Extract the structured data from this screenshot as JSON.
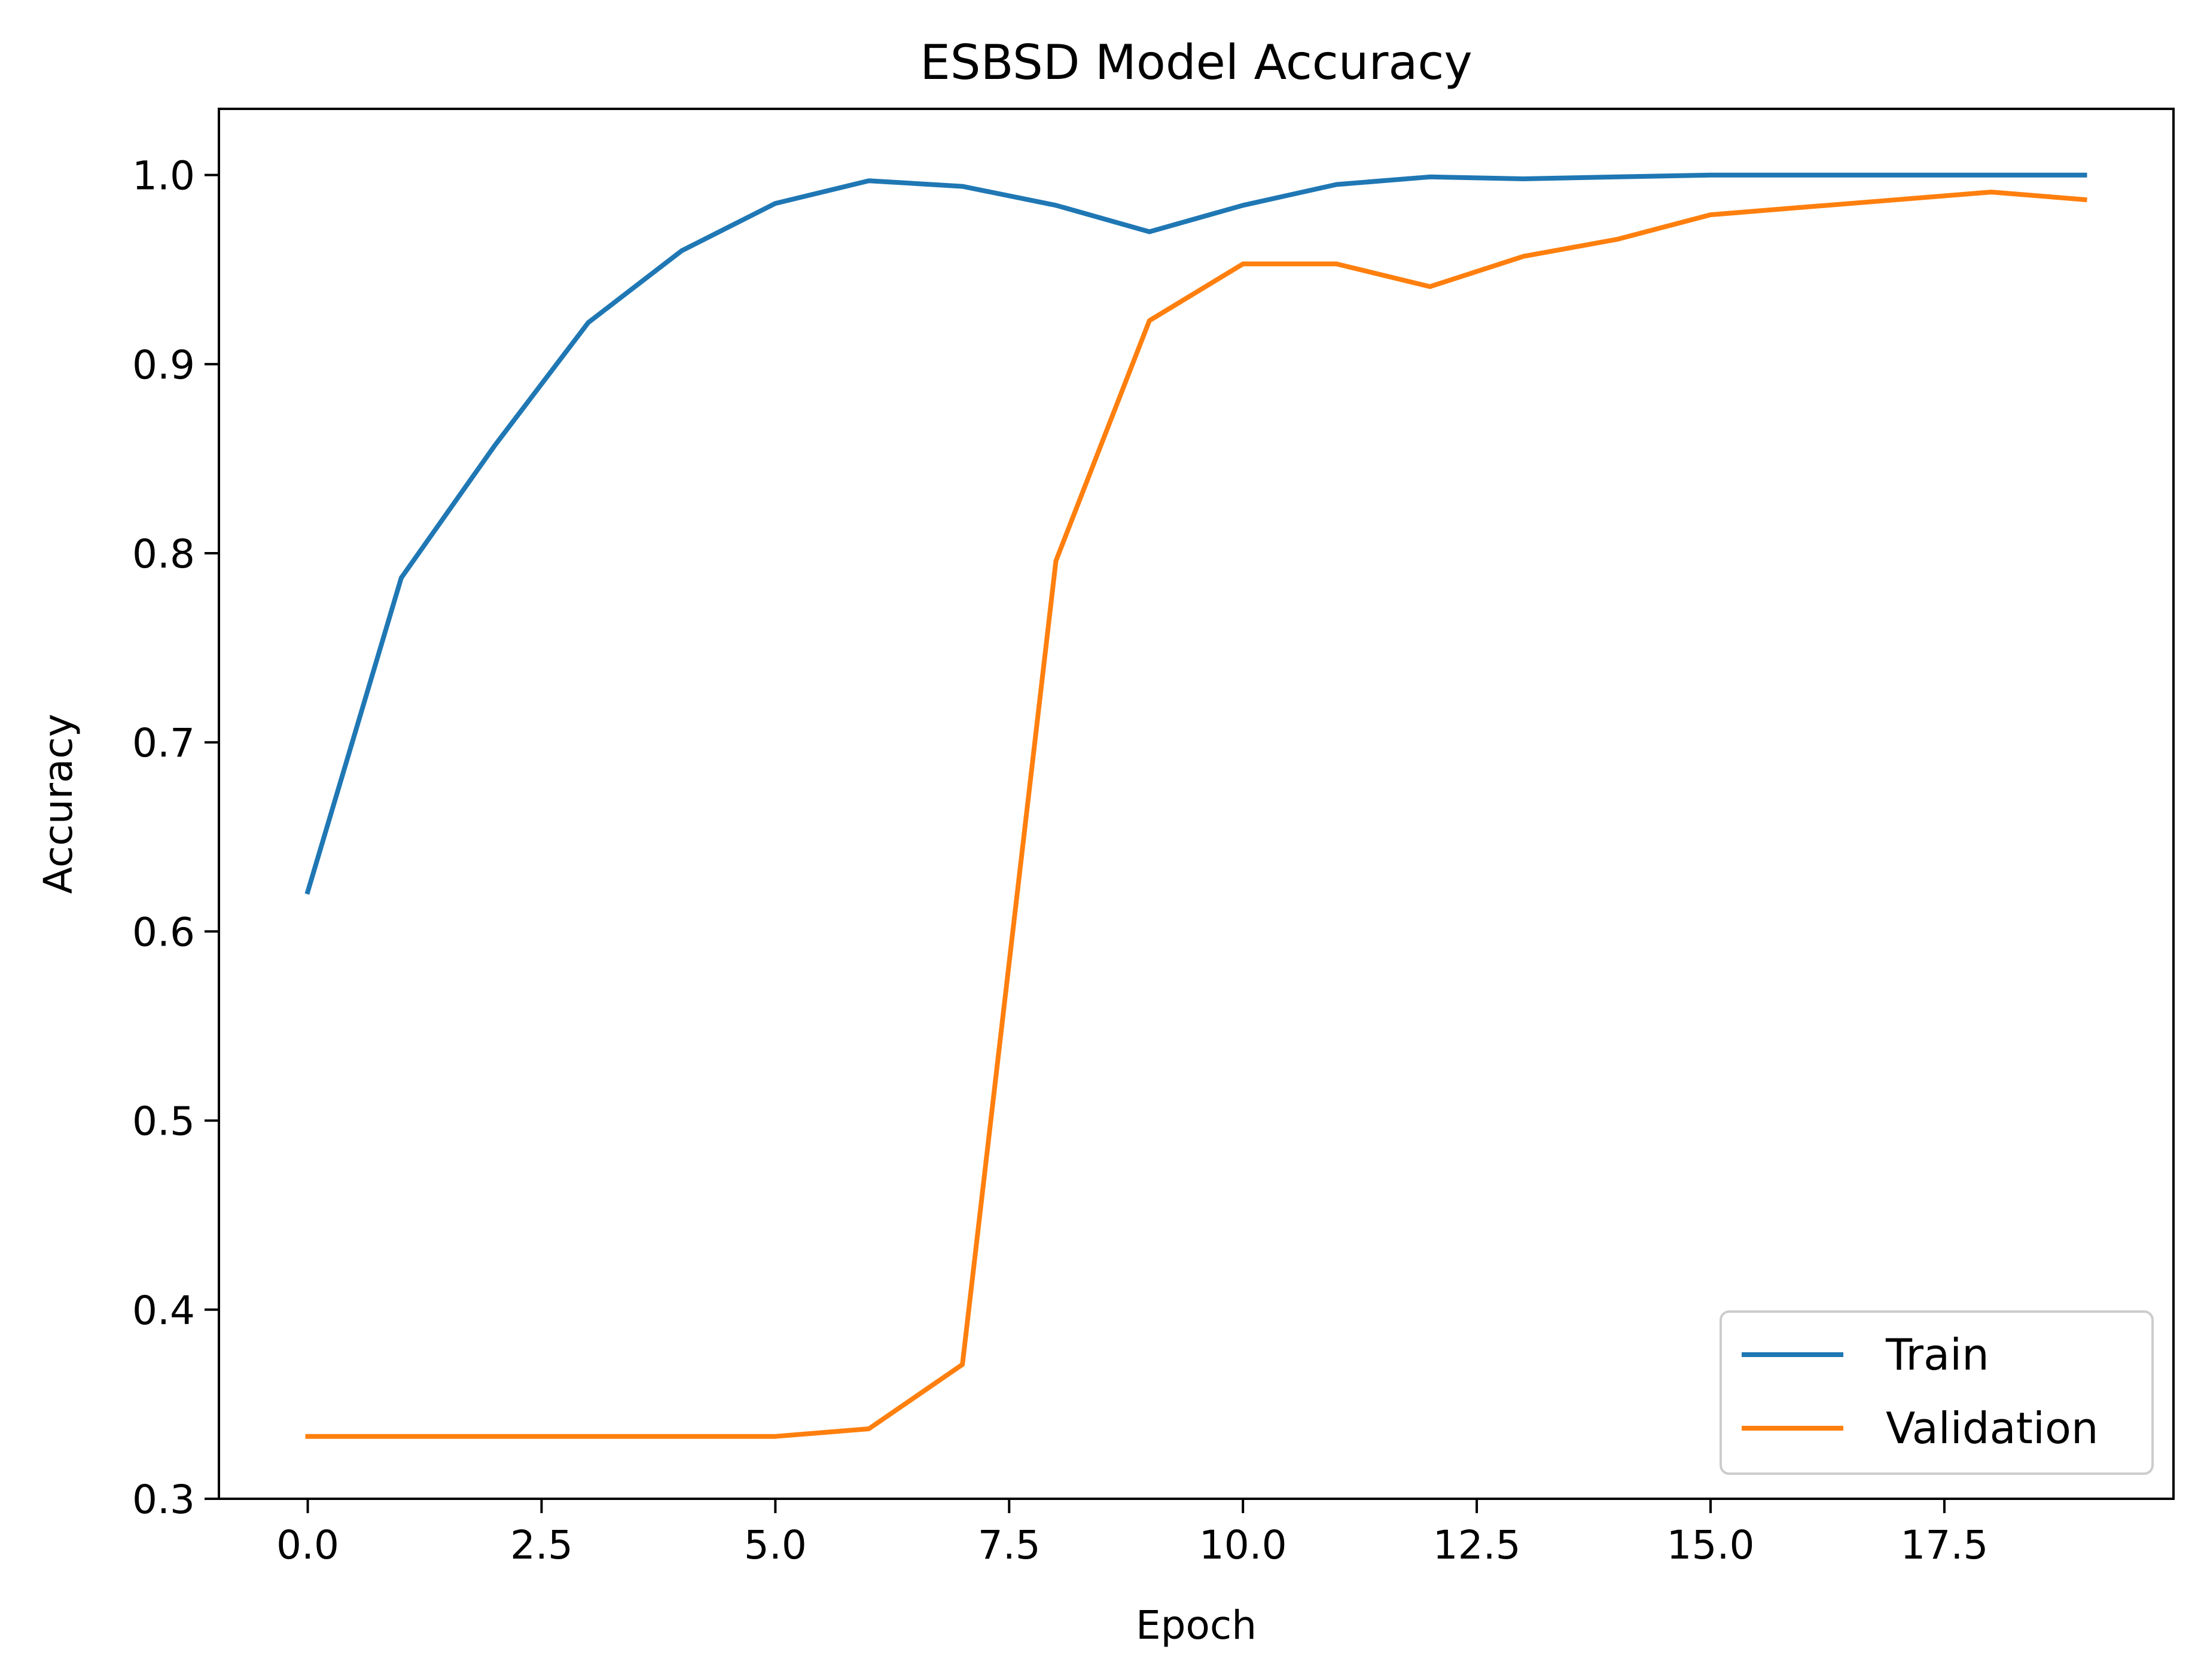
{
  "chart_data": {
    "type": "line",
    "title": "ESBSD Model Accuracy",
    "xlabel": "Epoch",
    "ylabel": "Accuracy",
    "xlim": [
      -0.95,
      19.95
    ],
    "ylim": [
      0.3,
      1.035
    ],
    "x_ticks": [
      0,
      2.5,
      5,
      7.5,
      10,
      12.5,
      15,
      17.5
    ],
    "x_tick_labels": [
      "0.0",
      "2.5",
      "5.0",
      "7.5",
      "10.0",
      "12.5",
      "15.0",
      "17.5"
    ],
    "y_ticks": [
      0.3,
      0.4,
      0.5,
      0.6,
      0.7,
      0.8,
      0.9,
      1.0
    ],
    "y_tick_labels": [
      "0.3",
      "0.4",
      "0.5",
      "0.6",
      "0.7",
      "0.8",
      "0.9",
      "1.0"
    ],
    "grid": false,
    "legend_position": "lower-right",
    "x": [
      0,
      1,
      2,
      3,
      4,
      5,
      6,
      7,
      8,
      9,
      10,
      11,
      12,
      13,
      14,
      15,
      16,
      17,
      18,
      19
    ],
    "series": [
      {
        "name": "Train",
        "color": "#1f77b4",
        "values": [
          0.621,
          0.787,
          0.857,
          0.922,
          0.96,
          0.985,
          0.997,
          0.994,
          0.984,
          0.97,
          0.984,
          0.995,
          0.999,
          0.998,
          0.999,
          1.0,
          1.0,
          1.0,
          1.0,
          1.0
        ]
      },
      {
        "name": "Validation",
        "color": "#ff7f0e",
        "values": [
          0.333,
          0.333,
          0.333,
          0.333,
          0.333,
          0.333,
          0.337,
          0.371,
          0.796,
          0.923,
          0.953,
          0.953,
          0.941,
          0.957,
          0.966,
          0.979,
          0.983,
          0.987,
          0.991,
          0.987
        ]
      }
    ]
  }
}
